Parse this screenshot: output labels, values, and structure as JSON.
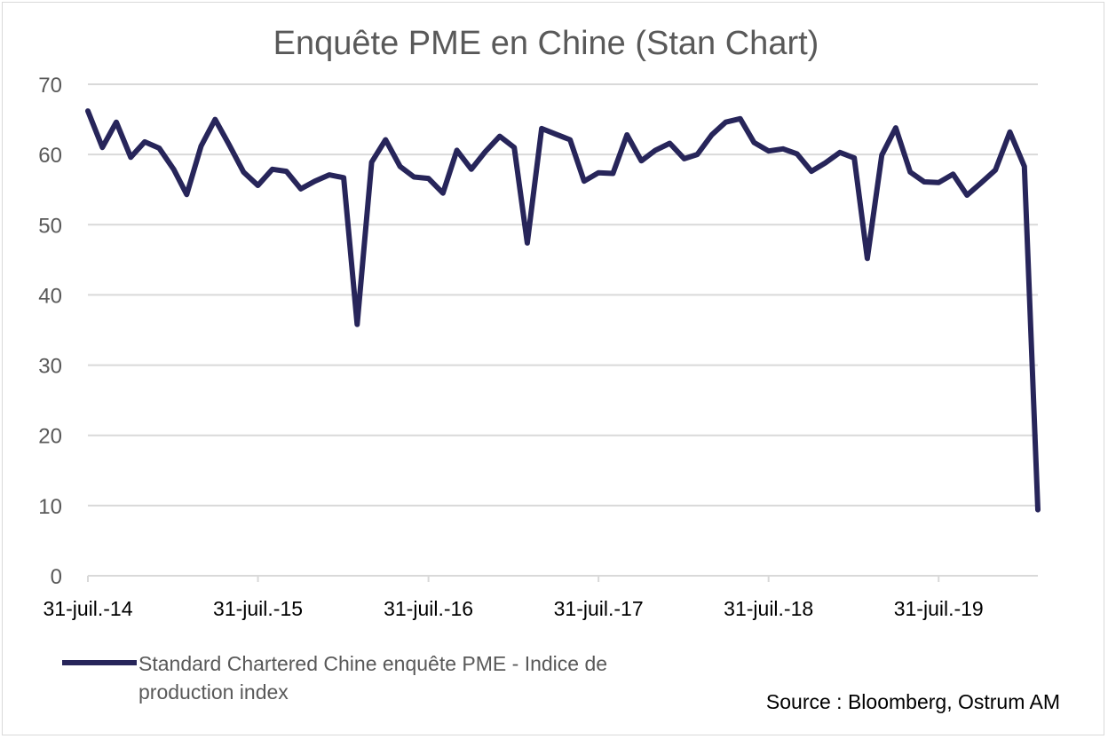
{
  "chart_data": {
    "type": "line",
    "title": "Enquête PME en Chine (Stan Chart)",
    "xlabel": "",
    "ylabel": "",
    "ylim": [
      0,
      70
    ],
    "yticks": [
      0,
      10,
      20,
      30,
      40,
      50,
      60,
      70
    ],
    "grid": true,
    "legend_position": "bottom-left",
    "x_start": "2014-07-31",
    "x_end": "2020-02-29",
    "x_tick_dates": [
      "2014-07-31",
      "2015-07-31",
      "2016-07-31",
      "2017-07-31",
      "2018-07-31",
      "2019-07-31"
    ],
    "x_tick_labels": [
      "31-juil.-14",
      "31-juil.-15",
      "31-juil.-16",
      "31-juil.-17",
      "31-juil.-18",
      "31-juil.-19"
    ],
    "series": [
      {
        "name": "Standard Chartered Chine enquête PME - Indice de production index",
        "color": "#27255a",
        "x": [
          "2014-07-31",
          "2014-08-31",
          "2014-09-30",
          "2014-10-31",
          "2014-11-30",
          "2014-12-31",
          "2015-01-31",
          "2015-02-28",
          "2015-03-31",
          "2015-04-30",
          "2015-05-31",
          "2015-06-30",
          "2015-07-31",
          "2015-08-31",
          "2015-09-30",
          "2015-10-31",
          "2015-11-30",
          "2015-12-31",
          "2016-01-31",
          "2016-02-29",
          "2016-03-31",
          "2016-04-30",
          "2016-05-31",
          "2016-06-30",
          "2016-07-31",
          "2016-08-31",
          "2016-09-30",
          "2016-10-31",
          "2016-11-30",
          "2016-12-31",
          "2017-01-31",
          "2017-02-28",
          "2017-03-31",
          "2017-04-30",
          "2017-05-31",
          "2017-06-30",
          "2017-07-31",
          "2017-08-31",
          "2017-09-30",
          "2017-10-31",
          "2017-11-30",
          "2017-12-31",
          "2018-01-31",
          "2018-02-28",
          "2018-03-31",
          "2018-04-30",
          "2018-05-31",
          "2018-06-30",
          "2018-07-31",
          "2018-08-31",
          "2018-09-30",
          "2018-10-31",
          "2018-11-30",
          "2018-12-31",
          "2019-01-31",
          "2019-02-28",
          "2019-03-31",
          "2019-04-30",
          "2019-05-31",
          "2019-06-30",
          "2019-07-31",
          "2019-08-31",
          "2019-09-30",
          "2019-10-31",
          "2019-11-30",
          "2019-12-31",
          "2020-01-31",
          "2020-02-29"
        ],
        "values": [
          66.2,
          61.0,
          64.6,
          59.6,
          61.8,
          60.9,
          57.9,
          54.3,
          61.2,
          65.0,
          61.3,
          57.5,
          55.6,
          57.9,
          57.6,
          55.1,
          56.2,
          57.1,
          56.7,
          35.8,
          58.9,
          62.1,
          58.3,
          56.8,
          56.6,
          54.5,
          60.6,
          57.9,
          60.4,
          62.6,
          61.0,
          47.4,
          63.7,
          62.9,
          62.1,
          56.2,
          57.4,
          57.3,
          62.8,
          59.1,
          60.6,
          61.6,
          59.4,
          60.0,
          62.8,
          64.6,
          65.1,
          61.7,
          60.5,
          60.8,
          60.1,
          57.6,
          58.8,
          60.3,
          59.5,
          45.2,
          59.9,
          63.8,
          57.5,
          56.1,
          56.0,
          57.2,
          54.2,
          56.0,
          57.8,
          63.2,
          58.3,
          9.4
        ]
      }
    ]
  },
  "source": "Source : Bloomberg, Ostrum AM"
}
